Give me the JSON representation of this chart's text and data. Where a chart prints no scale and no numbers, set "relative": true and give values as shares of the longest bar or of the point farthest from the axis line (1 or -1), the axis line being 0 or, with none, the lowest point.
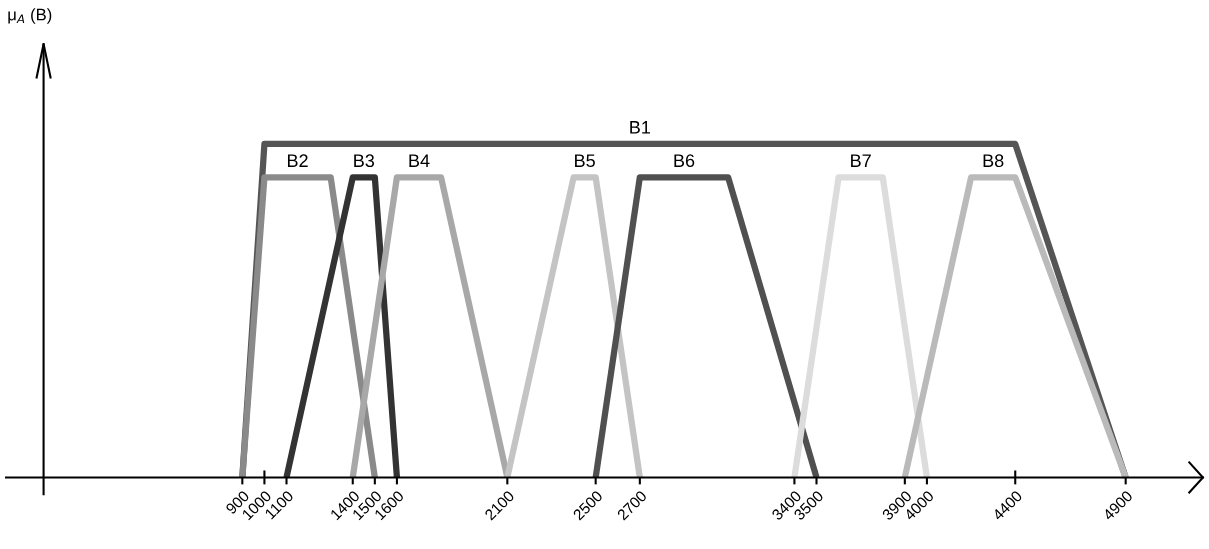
{
  "chart_data": {
    "type": "line",
    "relative": true,
    "annotations": [
      "μ$_{A}$ (B)"
    ],
    "xlim": [
      -170,
      5250
    ],
    "xticks": [
      900,
      1000,
      1100,
      1400,
      1500,
      1600,
      2100,
      2500,
      2700,
      3400,
      3500,
      3900,
      4000,
      4400,
      4900
    ],
    "grid": false,
    "legend": false,
    "marker": "none",
    "line_style": "solid",
    "series": [
      {
        "name": "B1",
        "color": "#555555",
        "x": [
          900,
          1000,
          4400,
          4900
        ],
        "values": [
          0,
          1,
          1,
          0
        ]
      },
      {
        "name": "B2",
        "color": "#8a8a8a",
        "x": [
          900,
          1000,
          1300,
          1500
        ],
        "values": [
          0,
          0.9,
          0.9,
          0
        ]
      },
      {
        "name": "B3",
        "color": "#333333",
        "x": [
          1100,
          1400,
          1500,
          1600
        ],
        "values": [
          0,
          0.9,
          0.9,
          0
        ]
      },
      {
        "name": "B4",
        "color": "#a8a8a8",
        "x": [
          1400,
          1600,
          1800,
          2100
        ],
        "values": [
          0,
          0.9,
          0.9,
          0
        ]
      },
      {
        "name": "B5",
        "color": "#c4c4c4",
        "x": [
          2100,
          2400,
          2500,
          2700
        ],
        "values": [
          0,
          0.9,
          0.9,
          0
        ]
      },
      {
        "name": "B6",
        "color": "#505050",
        "x": [
          2500,
          2700,
          3100,
          3500
        ],
        "values": [
          0,
          0.9,
          0.9,
          0
        ]
      },
      {
        "name": "B7",
        "color": "#dcdcdc",
        "x": [
          3400,
          3600,
          3800,
          4000
        ],
        "values": [
          0,
          0.9,
          0.9,
          0
        ]
      },
      {
        "name": "B8",
        "color": "#bababa",
        "x": [
          3900,
          4200,
          4400,
          4900
        ],
        "values": [
          0,
          0.9,
          0.9,
          0
        ]
      }
    ]
  }
}
